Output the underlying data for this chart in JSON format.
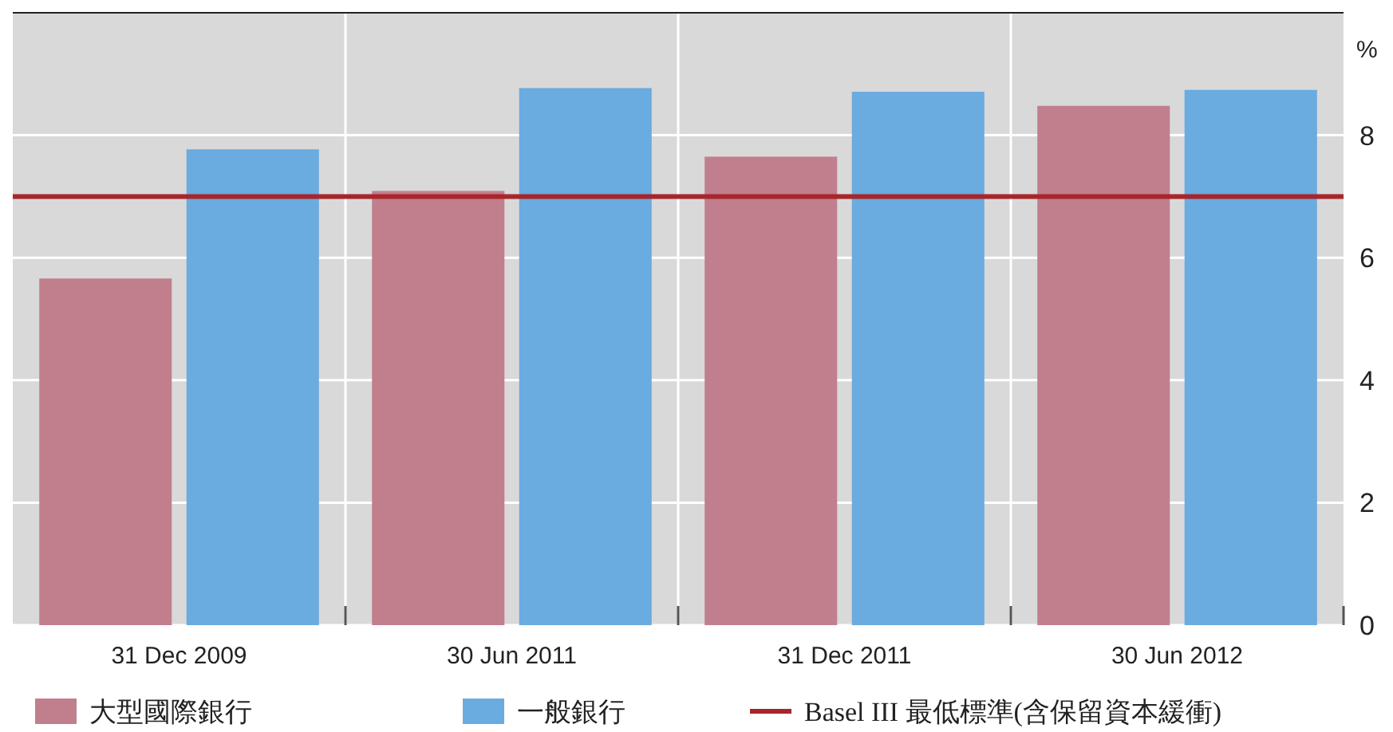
{
  "chart_data": {
    "type": "bar",
    "ylabel": "%",
    "categories": [
      "31 Dec 2009",
      "30 Jun 2011",
      "31 Dec 2011",
      "30 Jun 2012"
    ],
    "series": [
      {
        "name": "大型國際銀行",
        "color": "#c17f8e",
        "values": [
          5.66,
          7.09,
          7.65,
          8.48
        ]
      },
      {
        "name": "一般銀行",
        "color": "#6aabe0",
        "values": [
          7.77,
          8.77,
          8.71,
          8.74
        ]
      }
    ],
    "ylim": [
      0,
      10
    ],
    "yticks": [
      0,
      2,
      4,
      6,
      8
    ],
    "grid": true,
    "legend": "bottom",
    "ref_lines": [
      {
        "axis": "y",
        "value": 7,
        "label": "Basel III 最低標準(含保留資本緩衝)",
        "color": "#a8262b",
        "line_style": "solid"
      }
    ]
  }
}
